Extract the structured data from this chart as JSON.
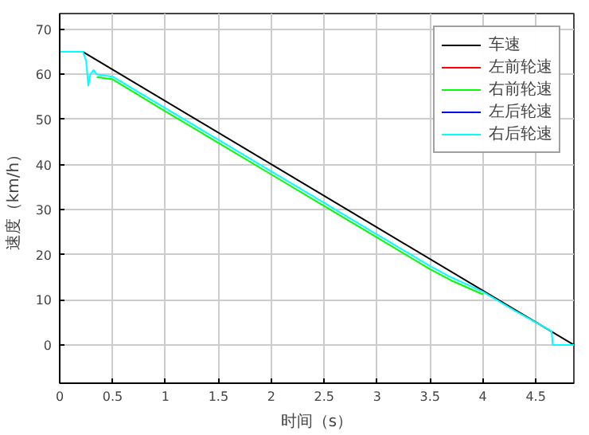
{
  "chart_data": {
    "type": "line",
    "xlabel": "时间（s）",
    "ylabel": "速度（km/h）",
    "xlim": [
      0,
      4.86
    ],
    "ylim": [
      -8.5,
      73.5
    ],
    "xticks": [
      0,
      0.5,
      1,
      1.5,
      2,
      2.5,
      3,
      3.5,
      4,
      4.5
    ],
    "yticks": [
      0,
      10,
      20,
      30,
      40,
      50,
      60,
      70
    ],
    "grid": true,
    "legend": "top right",
    "marker": "none",
    "line_style": "solid",
    "series": [
      {
        "name": "车速",
        "color": "#000000",
        "x": [
          0,
          0.22,
          4.86
        ],
        "values": [
          65,
          65,
          0
        ]
      },
      {
        "name": "左前轮速",
        "color": "#ff0000"
      },
      {
        "name": "右前轮速",
        "color": "#00ff00",
        "x": [
          0.35,
          0.5,
          1,
          1.5,
          2,
          2.5,
          3,
          3.5,
          3.7,
          4
        ],
        "values": [
          59.4,
          58.9,
          51.8,
          44.8,
          37.8,
          30.8,
          23.8,
          16.8,
          14.3,
          11.2
        ]
      },
      {
        "name": "左后轮速",
        "color": "#0000ff"
      },
      {
        "name": "右后轮速",
        "color": "#00ffff",
        "x": [
          0,
          0.22,
          0.25,
          0.27,
          0.29,
          0.32,
          0.35,
          0.5,
          1,
          1.5,
          2,
          2.5,
          3,
          3.5,
          3.7,
          4,
          4.3,
          4.5,
          4.65,
          4.66,
          4.86
        ],
        "values": [
          65,
          65,
          63,
          57.5,
          60,
          61,
          60,
          59.5,
          52.5,
          45.5,
          38.5,
          31.5,
          24.5,
          17.5,
          15,
          11.8,
          7.6,
          5,
          3,
          0,
          0
        ]
      }
    ]
  }
}
